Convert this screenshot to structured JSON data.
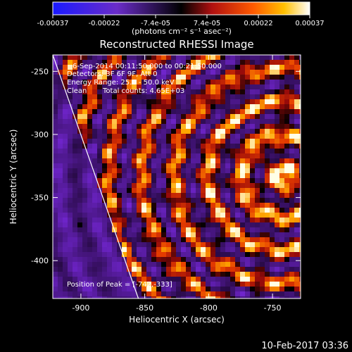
{
  "chart_data": {
    "type": "heatmap",
    "title": "Reconstructed RHESSI Image",
    "xlabel": "Heliocentric X (arcsec)",
    "ylabel": "Heliocentric Y (arcsec)",
    "xlim": [
      -922,
      -728
    ],
    "ylim": [
      -430,
      -237
    ],
    "xticks": [
      -900,
      -850,
      -800,
      -750
    ],
    "yticks": [
      -250,
      -300,
      -350,
      -400
    ],
    "colorbar": {
      "unit_label": "(photons cm⁻² s⁻¹ asec⁻²)",
      "range": [
        -0.00037,
        0.00037
      ],
      "ticks": [
        "-0.00037",
        "-0.00022",
        "-7.4e-05",
        "7.4e-05",
        "0.00022",
        "0.00037"
      ]
    },
    "annotations": [
      "6-Sep-2014 00:11:50.000 to 00:21:50.000",
      "Detectors: 3F 6F 9F, Att 0",
      "Energy Range: 25.0 - 50.0 keV",
      "Clean",
      "Total counts: 4.65E+03"
    ],
    "peak_label": "Position of Peak = [-742,-333]",
    "peak": [
      -742,
      -333
    ],
    "limb_line": [
      [
        -922,
        -237
      ],
      [
        -855,
        -430
      ]
    ],
    "grid": false
  },
  "footer": {
    "timestamp": "10-Feb-2017 03:36"
  }
}
